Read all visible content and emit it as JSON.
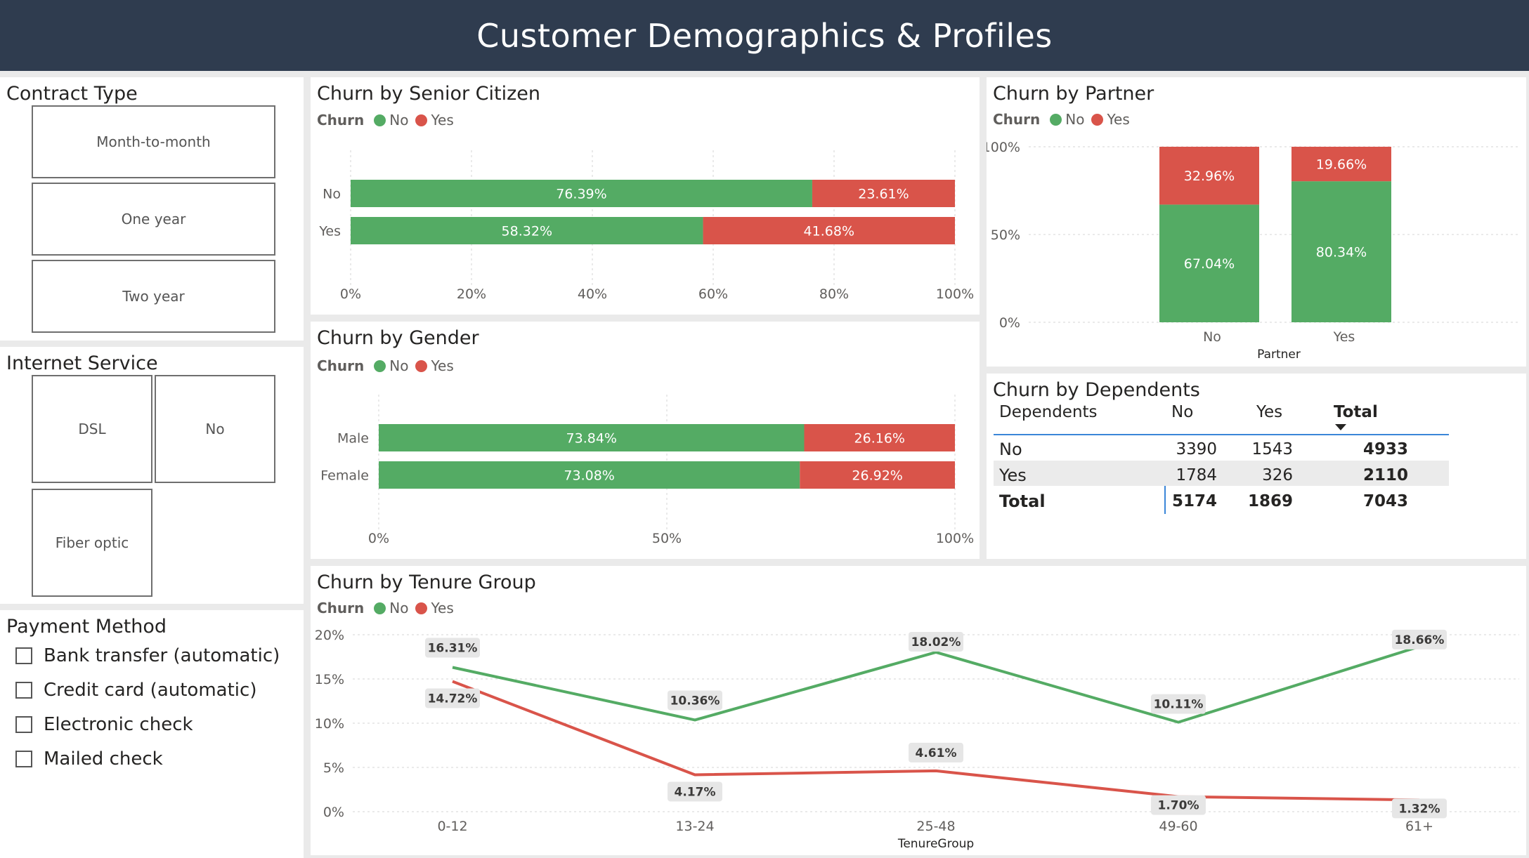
{
  "title": "Customer Demographics & Profiles",
  "colors": {
    "no": "#54ab64",
    "yes": "#d9544a",
    "header": "#2f3c4f"
  },
  "contract": {
    "title": "Contract Type",
    "options": [
      "Month-to-month",
      "One year",
      "Two year"
    ]
  },
  "internet": {
    "title": "Internet Service",
    "options": [
      "DSL",
      "No",
      "Fiber optic"
    ]
  },
  "payment": {
    "title": "Payment Method",
    "options": [
      "Bank transfer (automatic)",
      "Credit card (automatic)",
      "Electronic check",
      "Mailed check"
    ]
  },
  "legend": {
    "title": "Churn",
    "no": "No",
    "yes": "Yes"
  },
  "senior": {
    "title": "Churn by Senior Citizen",
    "chart_data": {
      "type": "bar",
      "orientation": "horizontal-stacked-100",
      "categories": [
        "No",
        "Yes"
      ],
      "series": [
        {
          "name": "No",
          "values": [
            76.39,
            58.32
          ]
        },
        {
          "name": "Yes",
          "values": [
            23.61,
            41.68
          ]
        }
      ],
      "labels": [
        [
          "76.39%",
          "23.61%"
        ],
        [
          "58.32%",
          "41.68%"
        ]
      ],
      "xticks": [
        "0%",
        "20%",
        "40%",
        "60%",
        "80%",
        "100%"
      ],
      "xlim": [
        0,
        100
      ]
    }
  },
  "gender": {
    "title": "Churn by Gender",
    "chart_data": {
      "type": "bar",
      "orientation": "horizontal-stacked-100",
      "categories": [
        "Male",
        "Female"
      ],
      "series": [
        {
          "name": "No",
          "values": [
            73.84,
            73.08
          ]
        },
        {
          "name": "Yes",
          "values": [
            26.16,
            26.92
          ]
        }
      ],
      "labels": [
        [
          "73.84%",
          "26.16%"
        ],
        [
          "73.08%",
          "26.92%"
        ]
      ],
      "xticks": [
        "0%",
        "50%",
        "100%"
      ],
      "xlim": [
        0,
        100
      ]
    }
  },
  "partner": {
    "title": "Churn by Partner",
    "chart_data": {
      "type": "bar",
      "orientation": "vertical-stacked-100",
      "categories": [
        "No",
        "Yes"
      ],
      "series": [
        {
          "name": "No",
          "values": [
            67.04,
            80.34
          ]
        },
        {
          "name": "Yes",
          "values": [
            32.96,
            19.66
          ]
        }
      ],
      "labels": [
        [
          "67.04%",
          "32.96%"
        ],
        [
          "80.34%",
          "19.66%"
        ]
      ],
      "yticks": [
        "0%",
        "50%",
        "100%"
      ],
      "ylim": [
        0,
        100
      ],
      "xlabel": "Partner"
    }
  },
  "dependents": {
    "title": "Churn by Dependents",
    "columns": [
      "Dependents",
      "No",
      "Yes",
      "Total"
    ],
    "rows": [
      {
        "label": "No",
        "no": "3390",
        "yes": "1543",
        "total": "4933"
      },
      {
        "label": "Yes",
        "no": "1784",
        "yes": "326",
        "total": "2110"
      }
    ],
    "total": {
      "label": "Total",
      "no": "5174",
      "yes": "1869",
      "total": "7043"
    }
  },
  "tenure": {
    "title": "Churn by Tenure Group",
    "chart_data": {
      "type": "line",
      "categories": [
        "0-12",
        "13-24",
        "25-48",
        "49-60",
        "61+"
      ],
      "series": [
        {
          "name": "No",
          "values": [
            16.31,
            10.36,
            18.02,
            10.11,
            18.66
          ]
        },
        {
          "name": "Yes",
          "values": [
            14.72,
            4.17,
            4.61,
            1.7,
            1.32
          ]
        }
      ],
      "labels": [
        [
          "16.31%",
          "10.36%",
          "18.02%",
          "10.11%",
          "18.66%"
        ],
        [
          "14.72%",
          "4.17%",
          "4.61%",
          "1.70%",
          "1.32%"
        ]
      ],
      "yticks": [
        "0%",
        "5%",
        "10%",
        "15%",
        "20%"
      ],
      "ylim": [
        0,
        20
      ],
      "xlabel": "TenureGroup"
    }
  }
}
